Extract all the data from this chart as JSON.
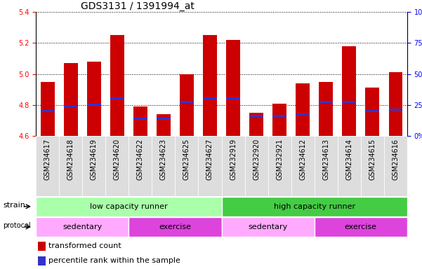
{
  "title": "GDS3131 / 1391994_at",
  "samples": [
    "GSM234617",
    "GSM234618",
    "GSM234619",
    "GSM234620",
    "GSM234622",
    "GSM234623",
    "GSM234625",
    "GSM234627",
    "GSM232919",
    "GSM232920",
    "GSM232921",
    "GSM234612",
    "GSM234613",
    "GSM234614",
    "GSM234615",
    "GSM234616"
  ],
  "bar_values": [
    4.95,
    5.07,
    5.08,
    5.25,
    4.79,
    4.74,
    5.0,
    5.25,
    5.22,
    4.75,
    4.81,
    4.94,
    4.95,
    5.18,
    4.91,
    5.01
  ],
  "blue_marker_values": [
    4.76,
    4.79,
    4.8,
    4.84,
    4.71,
    4.71,
    4.82,
    4.84,
    4.84,
    4.73,
    4.73,
    4.74,
    4.82,
    4.82,
    4.76,
    4.77
  ],
  "ylim_left": [
    4.6,
    5.4
  ],
  "ylim_right": [
    0,
    100
  ],
  "yticks_left": [
    4.6,
    4.8,
    5.0,
    5.2,
    5.4
  ],
  "yticks_right": [
    0,
    25,
    50,
    75,
    100
  ],
  "ytick_labels_right": [
    "0%",
    "25%",
    "50%",
    "75%",
    "100%"
  ],
  "bar_color": "#cc0000",
  "blue_color": "#3333cc",
  "baseline": 4.6,
  "strain_labels": [
    "low capacity runner",
    "high capacity runner"
  ],
  "protocol_labels": [
    "sedentary",
    "exercise",
    "sedentary",
    "exercise"
  ],
  "protocol_ranges": [
    [
      0,
      4
    ],
    [
      4,
      8
    ],
    [
      8,
      12
    ],
    [
      12,
      16
    ]
  ],
  "strain_color_low": "#aaffaa",
  "strain_color_high": "#44cc44",
  "protocol_color_sedentary": "#ffaaff",
  "protocol_color_exercise": "#dd44dd",
  "sample_bg_color": "#dddddd",
  "legend_red_label": "transformed count",
  "legend_blue_label": "percentile rank within the sample",
  "title_fontsize": 10,
  "tick_fontsize": 7,
  "label_fontsize": 8,
  "annotation_fontsize": 8
}
